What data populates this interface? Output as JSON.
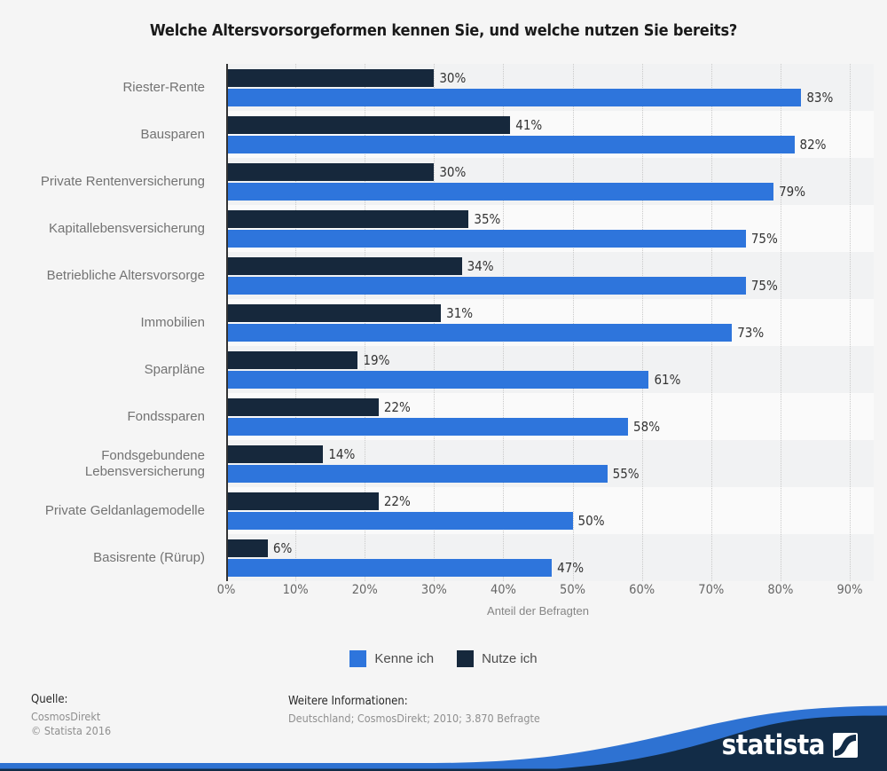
{
  "chart_data": {
    "type": "bar",
    "orientation": "horizontal",
    "title": "Welche Altersvorsorgeformen kennen Sie, und welche nutzen Sie bereits?",
    "categories": [
      "Riester-Rente",
      "Bausparen",
      "Private Rentenversicherung",
      "Kapitallebensversicherung",
      "Betriebliche Altersvorsorge",
      "Immobilien",
      "Sparpläne",
      "Fondssparen",
      "Fondsgebundene Lebensversicherung",
      "Private Geldanlagemodelle",
      "Basisrente (Rürup)"
    ],
    "series": [
      {
        "name": "Kenne ich",
        "color": "#2e75dc",
        "values": [
          83,
          82,
          79,
          75,
          75,
          73,
          61,
          58,
          55,
          50,
          47
        ]
      },
      {
        "name": "Nutze ich",
        "color": "#16283c",
        "values": [
          30,
          41,
          30,
          35,
          34,
          31,
          19,
          22,
          14,
          22,
          6
        ]
      }
    ],
    "bar_order_within_group": [
      "Nutze ich",
      "Kenne ich"
    ],
    "value_suffix": "%",
    "xlabel": "Anteil der Befragten",
    "xlim": [
      0,
      90
    ],
    "xticks": [
      "0%",
      "10%",
      "20%",
      "30%",
      "40%",
      "50%",
      "60%",
      "70%",
      "80%",
      "90%"
    ],
    "grid": "vertical-dotted",
    "legend_position": "bottom"
  },
  "legend": {
    "items": [
      {
        "label": "Kenne ich",
        "color": "#2e75dc"
      },
      {
        "label": "Nutze ich",
        "color": "#16283c"
      }
    ]
  },
  "footer": {
    "source_label": "Quelle:",
    "source": "CosmosDirekt",
    "copyright": "© Statista 2016",
    "info_label": "Weitere Informationen:",
    "info": "Deutschland; CosmosDirekt; 2010; 3.870 Befragte"
  },
  "branding": {
    "logo_text": "statista"
  },
  "colors": {
    "page_background": "#f5f5f5",
    "bar_known": "#2e75dc",
    "bar_used": "#16283c",
    "row_stripe_dark": "#f1f2f3",
    "row_stripe_light": "#fafafa",
    "gridline": "#c9c9c9",
    "axis_line": "#333333",
    "wave_navy": "#122c47",
    "wave_blue": "#2e72d2"
  }
}
